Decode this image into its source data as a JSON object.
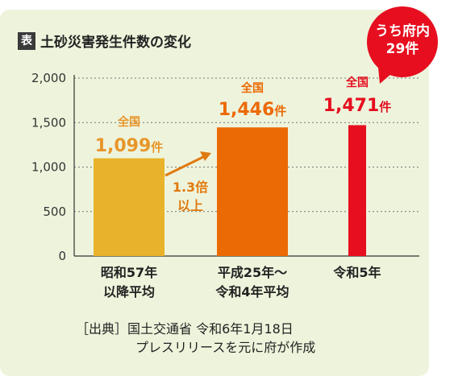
{
  "chart_data": {
    "type": "bar",
    "title_badge": "表",
    "title": "土砂災害発生件数の変化",
    "categories": [
      [
        "昭和57年",
        "以降平均"
      ],
      [
        "平成25年～",
        "令和4年平均"
      ],
      [
        "令和5年"
      ]
    ],
    "values": [
      1099,
      1446,
      1471
    ],
    "data_labels": [
      {
        "prefix": "全国",
        "number": "1,099",
        "unit": "件"
      },
      {
        "prefix": "全国",
        "number": "1,446",
        "unit": "件"
      },
      {
        "prefix": "全国",
        "number": "1,471",
        "unit": "件"
      }
    ],
    "bar_colors": [
      "#e8b32a",
      "#ec6a06",
      "#e60e1f"
    ],
    "label_colors": [
      "#e8962a",
      "#ec6a06",
      "#e60e1f"
    ],
    "ylim": [
      0,
      2000
    ],
    "yticks": [
      0,
      500,
      1000,
      1500,
      2000
    ],
    "ytick_labels": [
      "0",
      "500",
      "1,000",
      "1,500",
      "2,000"
    ],
    "grid": "dotted horizontal",
    "annotation": {
      "line1": "1.3倍",
      "line2": "以上",
      "color": "#e07a10"
    },
    "callout": {
      "line1": "うち府内",
      "line2": "29件",
      "color": "#e60e1f"
    }
  },
  "source": {
    "line1": "［出典］国土交通省 令和6年1月18日",
    "line2": "プレスリリースを元に府が作成"
  },
  "colors": {
    "panel_background": "#eef4dc",
    "axis": "#333333"
  }
}
